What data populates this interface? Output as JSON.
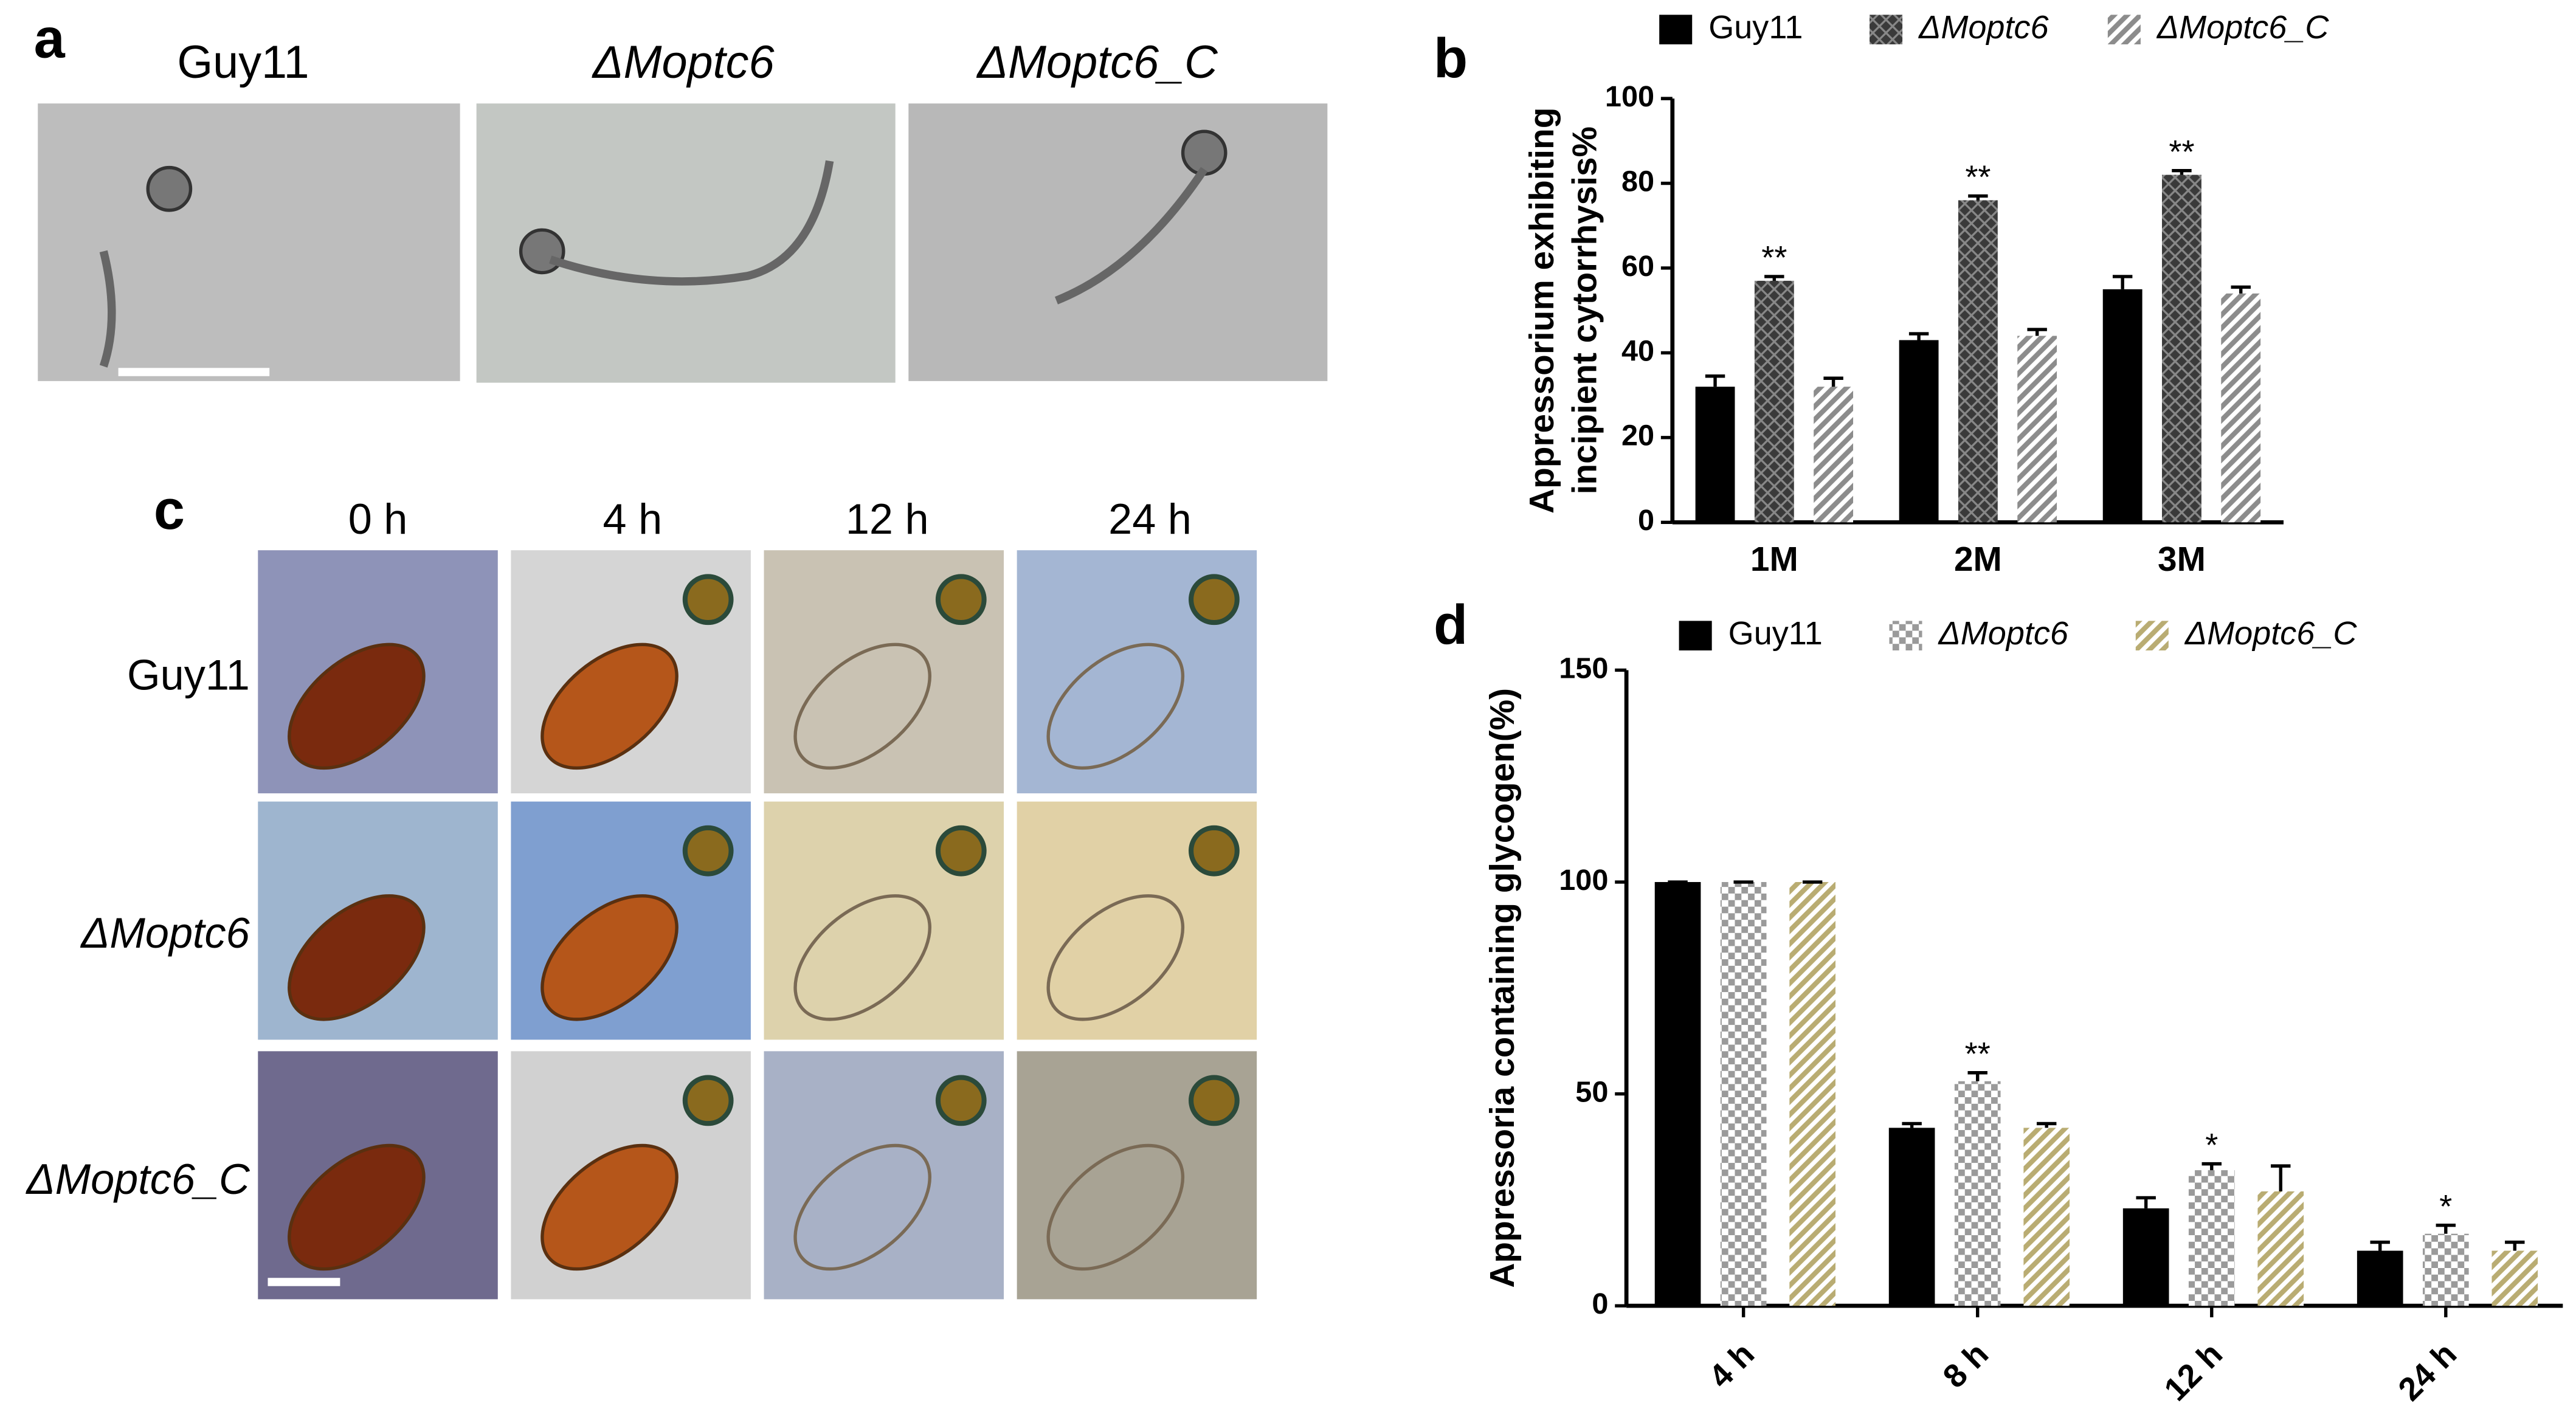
{
  "panel_labels": [
    "a",
    "b",
    "c",
    "d"
  ],
  "panel_a": {
    "labels": [
      "Guy11",
      "ΔMoptc6",
      "ΔMoptc6_C"
    ]
  },
  "panel_c": {
    "columns": [
      "0 h",
      "4 h",
      "12 h",
      "24 h"
    ],
    "rows": [
      "Guy11",
      "ΔMoptc6",
      "ΔMoptc6_C"
    ]
  },
  "chart_data": [
    {
      "type": "bar",
      "ylabel": [
        "Appressorium exhibiting",
        "incipient cytorrhysis%"
      ],
      "categories": [
        "1M",
        "2M",
        "3M"
      ],
      "ylim": [
        0,
        100
      ],
      "yticks": [
        0,
        20,
        40,
        60,
        80,
        100
      ],
      "legend": "top",
      "series": [
        {
          "name": "Guy11",
          "color": "#000000",
          "pattern": "solid",
          "values": [
            32,
            43,
            55
          ],
          "errors": [
            2.5,
            1.5,
            3
          ]
        },
        {
          "name": "ΔMoptc6",
          "color": "#3a3a3a",
          "pattern": "crosshatch",
          "values": [
            57,
            76,
            82
          ],
          "errors": [
            1,
            1,
            1
          ],
          "significance": [
            "**",
            "**",
            "**"
          ]
        },
        {
          "name": "ΔMoptc6_C",
          "color": "#8c8c8c",
          "pattern": "stripes",
          "values": [
            32,
            44,
            54
          ],
          "errors": [
            2,
            1.5,
            1.5
          ]
        }
      ]
    },
    {
      "type": "bar",
      "ylabel": [
        "Appressoria containing glycogen(%)"
      ],
      "categories": [
        "4 h",
        "8 h",
        "12 h",
        "24 h"
      ],
      "ylim": [
        0,
        150
      ],
      "yticks": [
        0,
        50,
        100,
        150
      ],
      "legend": "top",
      "series": [
        {
          "name": "Guy11",
          "color": "#000000",
          "pattern": "solid",
          "values": [
            100,
            42,
            23,
            13
          ],
          "errors": [
            0,
            1,
            2.5,
            2
          ]
        },
        {
          "name": "ΔMoptc6",
          "color": "#9a9a9a",
          "pattern": "checker",
          "values": [
            100,
            53,
            32,
            17
          ],
          "errors": [
            0,
            2,
            1.5,
            2
          ],
          "significance": [
            null,
            "**",
            "*",
            "*"
          ]
        },
        {
          "name": "ΔMoptc6_C",
          "color": "#b9ac72",
          "pattern": "stripes",
          "values": [
            100,
            42,
            27,
            13
          ],
          "errors": [
            0,
            1,
            6,
            2
          ]
        }
      ]
    }
  ]
}
